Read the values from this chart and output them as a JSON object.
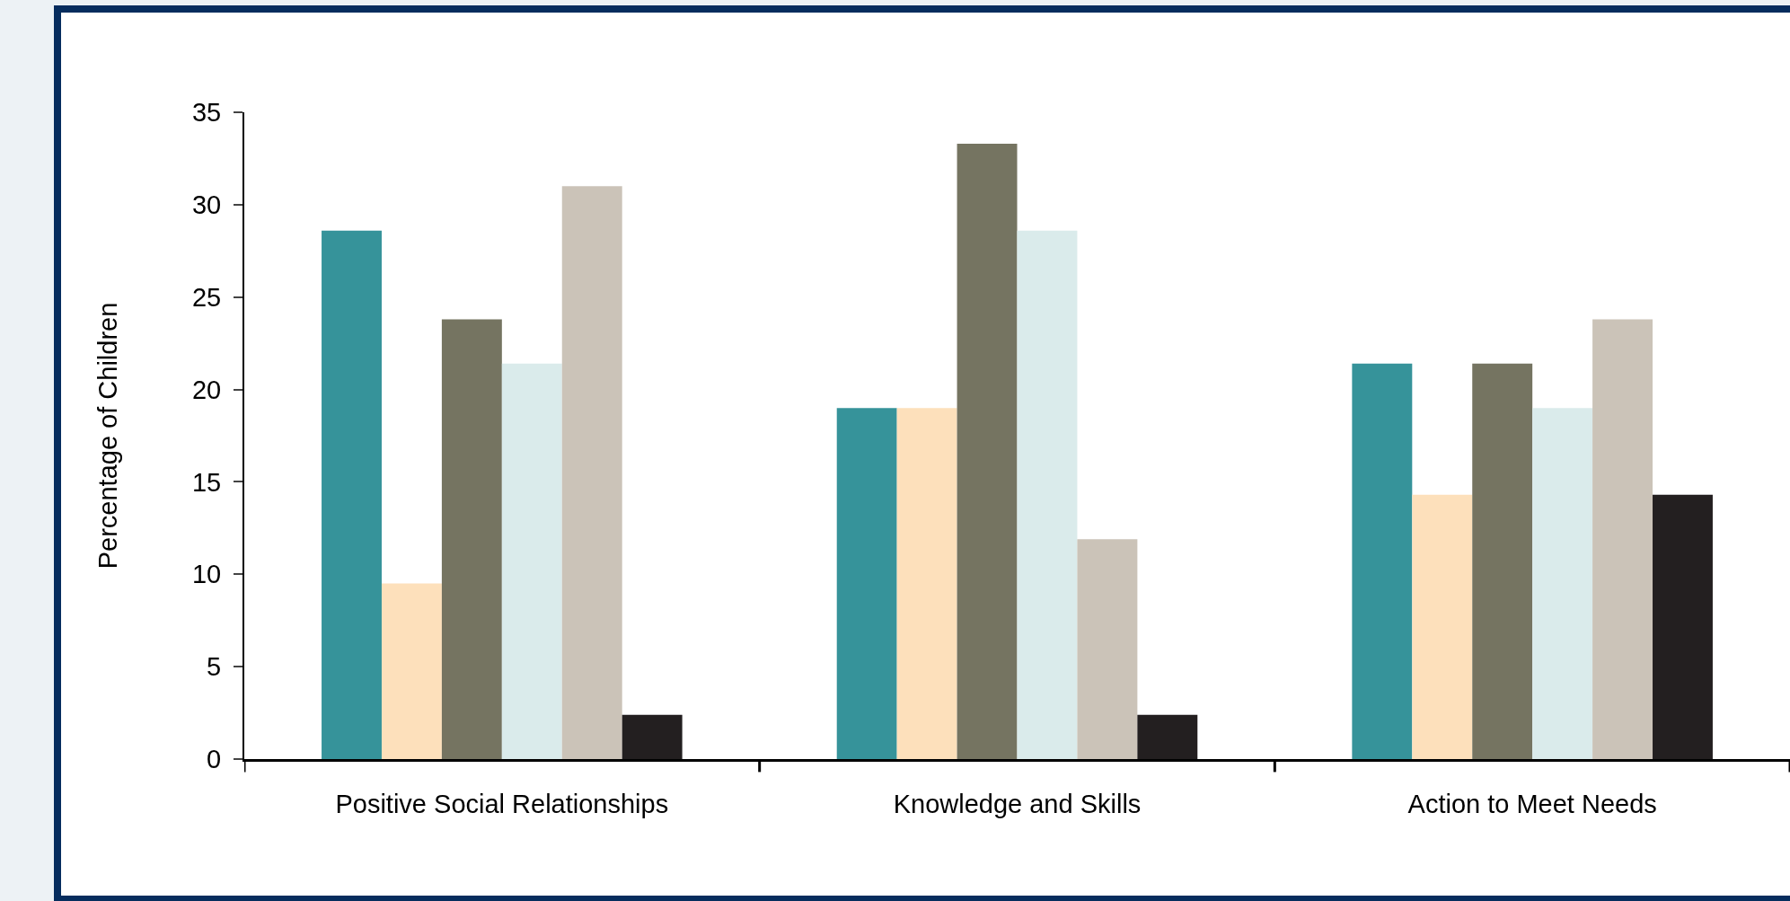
{
  "chart_data": {
    "type": "bar",
    "ylabel": "Percentage of Children",
    "categories": [
      "Positive Social Relationships",
      "Knowledge and Skills",
      "Action to Meet Needs"
    ],
    "series": [
      {
        "color": "#36939a",
        "values": [
          28.6,
          19.0,
          21.4
        ]
      },
      {
        "color": "#fde0bb",
        "values": [
          9.5,
          19.0,
          14.3
        ]
      },
      {
        "color": "#757461",
        "values": [
          23.8,
          33.3,
          21.4
        ]
      },
      {
        "color": "#daebeb",
        "values": [
          21.4,
          28.6,
          19.0
        ]
      },
      {
        "color": "#cbc3b8",
        "values": [
          31.0,
          11.9,
          23.8
        ]
      },
      {
        "color": "#231f20",
        "values": [
          2.4,
          2.4,
          14.3
        ]
      }
    ],
    "ylim": [
      0,
      35
    ],
    "yticks": [
      0,
      5,
      10,
      15,
      20,
      25,
      30,
      35
    ],
    "grid": false
  }
}
